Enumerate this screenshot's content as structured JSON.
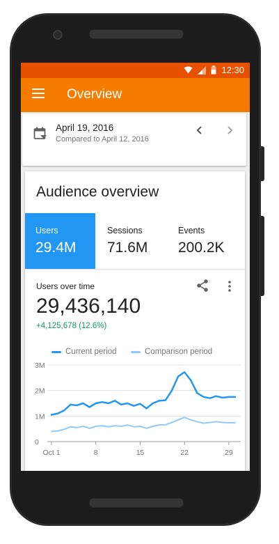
{
  "status_bar": {
    "time": "12:30"
  },
  "app_bar": {
    "title": "Overview"
  },
  "date_bar": {
    "date": "April 19, 2016",
    "comparison": "Compared to April 12, 2016"
  },
  "audience_card": {
    "title": "Audience overview",
    "metrics": [
      {
        "label": "Users",
        "value": "29.4M",
        "selected": true
      },
      {
        "label": "Sessions",
        "value": "71.6M",
        "selected": false
      },
      {
        "label": "Events",
        "value": "200.2K",
        "selected": false
      }
    ],
    "chart_section": {
      "label": "Users over time",
      "total": "29,436,140",
      "change": "+4,125,678 (12.6%)"
    }
  },
  "colors": {
    "status_bar": "#e65100",
    "app_bar": "#f57c00",
    "accent": "#2196f3",
    "comparison": "#90caf9",
    "positive": "#0f9d58"
  },
  "icons": [
    "menu-icon",
    "wifi-icon",
    "signal-icon",
    "battery-icon",
    "calendar-icon",
    "chevron-left-icon",
    "chevron-right-icon",
    "share-icon",
    "more-vert-icon"
  ],
  "chart_data": {
    "type": "line",
    "x": [
      1,
      2,
      3,
      4,
      5,
      6,
      7,
      8,
      9,
      10,
      11,
      12,
      13,
      14,
      15,
      16,
      17,
      18,
      19,
      20,
      21,
      22,
      23,
      24,
      25,
      26,
      27,
      28,
      29,
      30
    ],
    "x_tick_labels": [
      "Oct 1",
      "8",
      "15",
      "22",
      "29"
    ],
    "x_ticks": [
      1,
      8,
      15,
      22,
      29
    ],
    "y_tick_labels": [
      "0",
      "1M",
      "2M",
      "3M"
    ],
    "y_ticks": [
      0,
      1,
      2,
      3
    ],
    "ylim": [
      0,
      3
    ],
    "y_unit": "M",
    "series": [
      {
        "name": "Current period",
        "color": "#2196f3",
        "values": [
          1.05,
          1.1,
          1.22,
          1.45,
          1.42,
          1.5,
          1.35,
          1.5,
          1.55,
          1.5,
          1.6,
          1.45,
          1.5,
          1.4,
          1.48,
          1.3,
          1.5,
          1.6,
          1.62,
          2.0,
          2.55,
          2.72,
          2.4,
          1.9,
          1.75,
          1.7,
          1.78,
          1.72,
          1.75,
          1.75
        ]
      },
      {
        "name": "Comparison period",
        "color": "#90caf9",
        "values": [
          0.4,
          0.42,
          0.48,
          0.58,
          0.55,
          0.6,
          0.52,
          0.6,
          0.62,
          0.58,
          0.62,
          0.6,
          0.65,
          0.58,
          0.6,
          0.52,
          0.6,
          0.65,
          0.66,
          0.75,
          0.85,
          0.95,
          0.85,
          0.78,
          0.72,
          0.75,
          0.78,
          0.75,
          0.74,
          0.74
        ]
      }
    ],
    "legend_position": "top",
    "grid": true
  }
}
